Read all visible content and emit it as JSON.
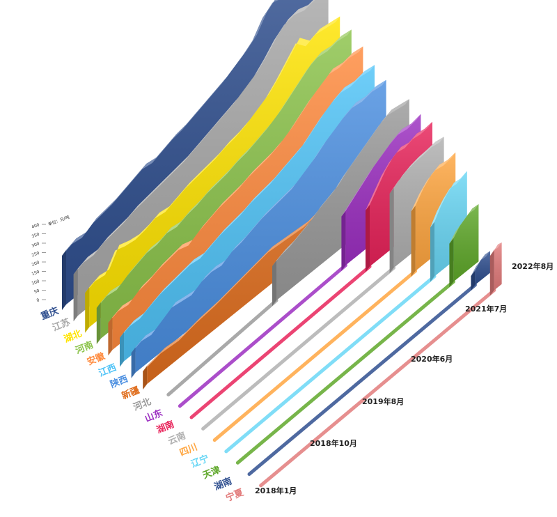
{
  "chart_data": {
    "type": "area",
    "title": "",
    "unit_label": "单位：元/吨",
    "x_tick_labels": [
      "2018年1月",
      "2018年10月",
      "2019年8月",
      "2020年6月",
      "2021年7月",
      "2022年8月"
    ],
    "y_ticks": [
      0,
      50,
      100,
      150,
      200,
      250,
      300,
      350,
      400
    ],
    "ylim": [
      0,
      400
    ],
    "grid": false,
    "legend": "none",
    "series": [
      {
        "name": "重庆",
        "color": "#2f4f8f",
        "start": 0.0,
        "values": [
          150,
          160,
          155,
          170,
          175,
          180,
          190,
          200,
          210,
          205,
          215,
          225,
          230,
          240,
          250,
          260,
          270,
          285,
          300,
          320,
          360,
          380,
          370,
          365,
          380,
          375
        ]
      },
      {
        "name": "江苏",
        "color": "#a8a8a8",
        "start": 0.0,
        "values": [
          130,
          140,
          138,
          150,
          155,
          160,
          170,
          175,
          180,
          185,
          190,
          195,
          205,
          215,
          225,
          235,
          245,
          260,
          275,
          300,
          330,
          350,
          355,
          345,
          350,
          345
        ]
      },
      {
        "name": "湖北",
        "color": "#ffe400",
        "start": 0.0,
        "values": [
          110,
          120,
          115,
          160,
          150,
          145,
          150,
          160,
          155,
          165,
          175,
          180,
          185,
          190,
          200,
          205,
          215,
          230,
          245,
          270,
          300,
          330,
          300,
          310,
          305,
          300
        ]
      },
      {
        "name": "河南",
        "color": "#8bc34a",
        "start": 0.0,
        "values": [
          100,
          110,
          105,
          120,
          130,
          140,
          140,
          150,
          145,
          155,
          160,
          170,
          175,
          180,
          190,
          195,
          205,
          215,
          230,
          250,
          270,
          290,
          300,
          295,
          300,
          295
        ]
      },
      {
        "name": "安徽",
        "color": "#ff8a3d",
        "start": 0.0,
        "values": [
          90,
          100,
          95,
          110,
          115,
          125,
          130,
          135,
          125,
          140,
          150,
          160,
          165,
          170,
          180,
          185,
          190,
          200,
          215,
          235,
          255,
          270,
          285,
          280,
          285,
          280
        ]
      },
      {
        "name": "江西",
        "color": "#4fc3f7",
        "start": 0.0,
        "values": [
          80,
          90,
          88,
          100,
          110,
          115,
          120,
          125,
          120,
          130,
          140,
          145,
          150,
          160,
          165,
          170,
          180,
          190,
          200,
          220,
          240,
          255,
          265,
          260,
          265,
          260
        ]
      },
      {
        "name": "陕西",
        "color": "#4a8ee0",
        "start": 0.0,
        "values": [
          70,
          80,
          75,
          90,
          105,
          100,
          95,
          110,
          115,
          110,
          125,
          130,
          140,
          150,
          155,
          160,
          165,
          180,
          195,
          215,
          230,
          245,
          255,
          250,
          255,
          250
        ]
      },
      {
        "name": "新疆",
        "color": "#e06e1e",
        "start": 0.0,
        "values": [
          50,
          60,
          55,
          65,
          70,
          80,
          90,
          100,
          95,
          90,
          100,
          110,
          120,
          125,
          130
        ]
      },
      {
        "name": "河北",
        "color": "#9a9a9a",
        "start": 0.47,
        "values": [
          110,
          120,
          125,
          135,
          145,
          160,
          170,
          180,
          200,
          215,
          230,
          245,
          260,
          270,
          265,
          260
        ]
      },
      {
        "name": "山东",
        "color": "#9c2fc1",
        "start": 0.7,
        "values": [
          150,
          170,
          190,
          210,
          225,
          240,
          250,
          245,
          250
        ]
      },
      {
        "name": "湖南",
        "color": "#e8235a",
        "start": 0.75,
        "values": [
          170,
          200,
          230,
          250,
          260,
          255,
          262,
          258,
          260
        ]
      },
      {
        "name": "云南",
        "color": "#b0b0b0",
        "start": 0.8,
        "values": [
          220,
          235,
          245,
          250,
          252,
          255,
          250
        ]
      },
      {
        "name": "四川",
        "color": "#ffa640",
        "start": 0.84,
        "values": [
          180,
          210,
          230,
          240,
          235,
          238
        ]
      },
      {
        "name": "辽宁",
        "color": "#6ad7f5",
        "start": 0.87,
        "values": [
          150,
          180,
          200,
          215,
          212,
          218
        ]
      },
      {
        "name": "天津",
        "color": "#5fa82a",
        "start": 0.9,
        "values": [
          120,
          140,
          150,
          160,
          158
        ]
      },
      {
        "name": "湖南",
        "color": "#2f4f8f",
        "start": 0.94,
        "values": [
          40,
          55,
          62,
          60
        ]
      },
      {
        "name": "宁夏",
        "color": "#e27b7b",
        "start": 0.97,
        "values": [
          110,
          118,
          115
        ]
      }
    ]
  }
}
